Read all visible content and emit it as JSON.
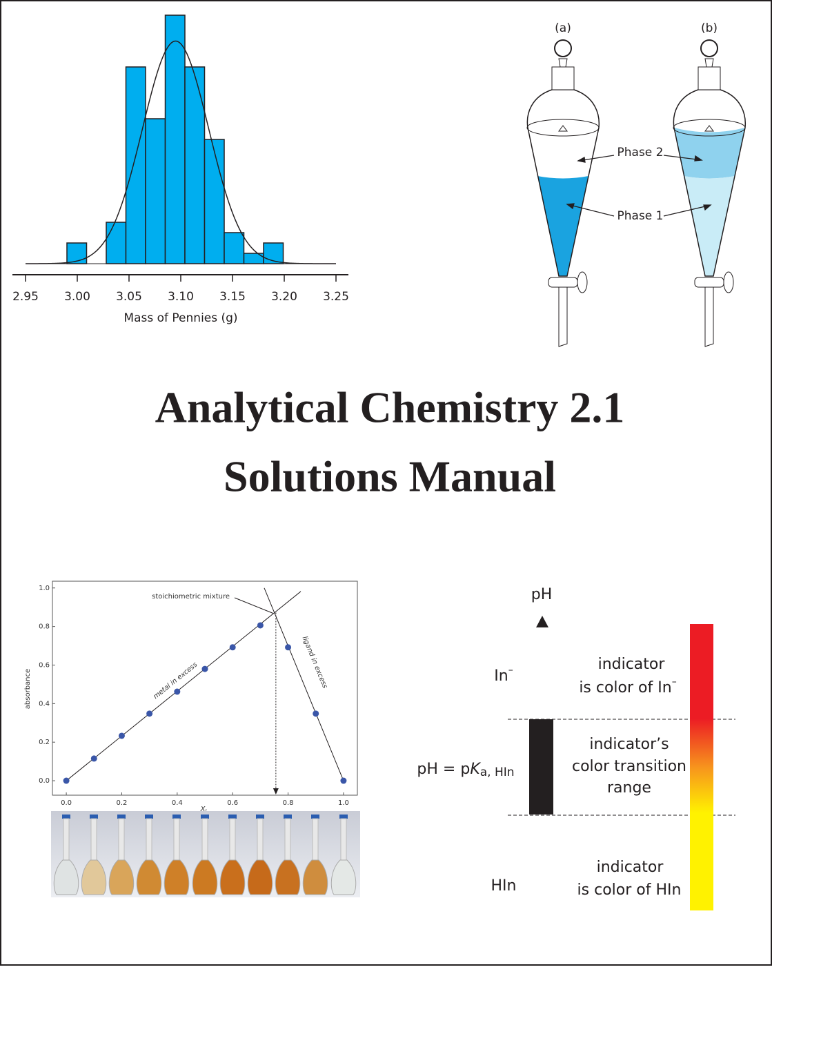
{
  "title": [
    "Analytical Chemistry 2.1",
    "Solutions Manual"
  ],
  "chart_data": [
    {
      "type": "histogram",
      "xlabel": "Mass of Pennies (g)",
      "color": "#00aeef",
      "bins": [
        2.99,
        3.009,
        3.028,
        3.047,
        3.066,
        3.085,
        3.104,
        3.123,
        3.142,
        3.161,
        3.18,
        3.199
      ],
      "values": [
        2,
        0,
        4,
        19,
        14,
        24,
        19,
        12,
        3,
        1,
        2
      ],
      "curve": {
        "mean": 3.095,
        "sd": 0.032,
        "peak": 21.5
      },
      "xlim": [
        2.95,
        3.25
      ],
      "xticks": [
        2.95,
        {
          "value": 3.0,
          "label": "3.00"
        },
        3.05,
        {
          "value": 3.1,
          "label": "3.10"
        },
        3.15,
        {
          "value": 3.2,
          "label": "3.20"
        },
        3.25
      ]
    },
    {
      "type": "scatter",
      "xlabel": "X",
      "xlabel_sub": "L",
      "ylabel": "absorbance",
      "color": "#3a56a8",
      "x": [
        0,
        0.1,
        0.2,
        0.3,
        0.4,
        0.5,
        0.6,
        0.7,
        0.8,
        0.9,
        1.0
      ],
      "values": [
        0,
        0.115,
        0.233,
        0.348,
        0.462,
        0.58,
        0.692,
        0.806,
        0.692,
        0.348,
        0
      ],
      "lines": [
        {
          "label": "metal in excess",
          "x": [
            0,
            0.846
          ],
          "y": [
            0,
            0.982
          ]
        },
        {
          "label": "ligand in excess",
          "x": [
            0.714,
            1.0
          ],
          "y": [
            1.0,
            0
          ]
        }
      ],
      "marker": {
        "label": "stoichiometric mixture",
        "x": 0.756,
        "y": 0.872
      },
      "xlim": [
        -0.05,
        1.05
      ],
      "ylim": [
        -0.075,
        1.035
      ],
      "xticks": [
        {
          "value": 0,
          "label": "0.0"
        },
        0.2,
        0.4,
        0.6,
        0.8,
        {
          "value": 1,
          "label": "1.0"
        }
      ],
      "yticks": [
        {
          "value": 0,
          "label": "0.0"
        },
        0.2,
        0.4,
        0.6,
        0.8,
        {
          "value": 1,
          "label": "1.0"
        }
      ]
    }
  ],
  "funnel": {
    "panels": [
      "(a)",
      "(b)"
    ],
    "labels": [
      "Phase 2",
      "Phase 1"
    ]
  },
  "indicator": {
    "axis": "pH",
    "upper_species": {
      "text": "In",
      "sup": "–"
    },
    "upper_note": [
      "indicator",
      {
        "text": "is color of In",
        "sup": "–"
      }
    ],
    "middle_label": {
      "text": "pH = p",
      "italic": "K",
      "sub": "a, HIn"
    },
    "middle_note": [
      "indicator’s",
      "color transition",
      "range"
    ],
    "lower_species": "HIn",
    "lower_note": [
      "indicator",
      "is color of HIn"
    ]
  }
}
